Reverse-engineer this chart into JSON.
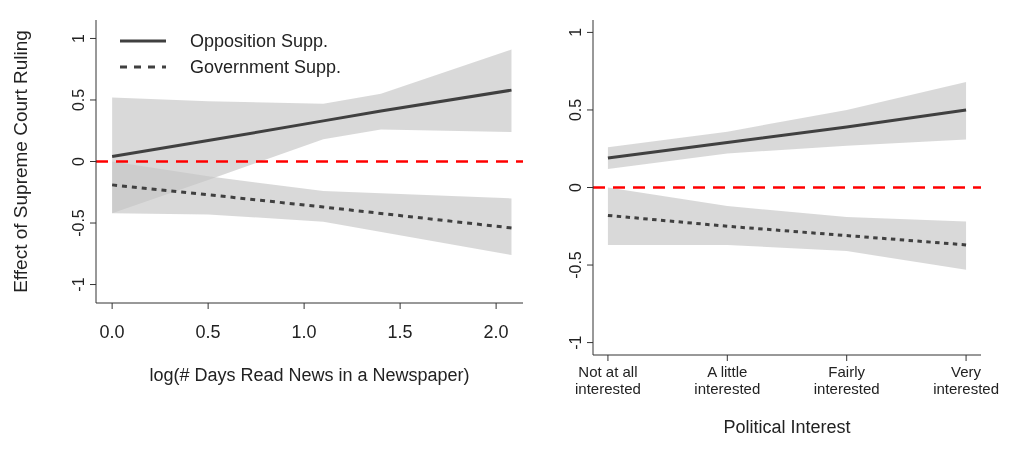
{
  "chart_data": [
    {
      "type": "line",
      "xlabel": "log(# Days Read News in a Newspaper)",
      "ylabel": "Effect of Supreme Court Ruling",
      "xlim": [
        -0.084,
        2.14
      ],
      "xticks": [
        {
          "value": 0,
          "label": "0.0"
        },
        0.5,
        {
          "value": 1,
          "label": "1.0"
        },
        1.5,
        {
          "value": 2,
          "label": "2.0"
        }
      ],
      "ylim": [
        -1.15,
        1.15
      ],
      "yticks": [
        -1,
        -0.5,
        0,
        0.5,
        1
      ],
      "grid": false,
      "legend": "top left",
      "marker": "none",
      "series": [
        {
          "name": "Opposition Supp.",
          "color": "#404040",
          "line_style": "solid",
          "x": [
            0,
            0.5,
            1.1,
            1.4,
            2.08
          ],
          "values": [
            0.04,
            0.17,
            0.33,
            0.41,
            0.58
          ],
          "lower": [
            -0.42,
            -0.15,
            0.18,
            0.26,
            0.24
          ],
          "upper": [
            0.52,
            0.49,
            0.47,
            0.55,
            0.91
          ]
        },
        {
          "name": "Government Supp.",
          "color": "#404040",
          "line_style": "dashed",
          "x": [
            0,
            0.5,
            1.1,
            2.08
          ],
          "values": [
            -0.19,
            -0.27,
            -0.37,
            -0.54
          ],
          "lower": [
            -0.42,
            -0.43,
            -0.49,
            -0.76
          ],
          "upper": [
            0.0,
            -0.12,
            -0.24,
            -0.3
          ]
        }
      ],
      "ref_lines": [
        {
          "axis": "y",
          "value": 0,
          "color": "#ff0000",
          "line_style": "dashed"
        }
      ]
    },
    {
      "type": "line",
      "xlabel": "Political Interest",
      "categories": [
        "Not at all\ninterested",
        "A little\ninterested",
        "Fairly\ninterested",
        "Very\ninterested"
      ],
      "ylim": [
        -1.08,
        1.08
      ],
      "yticks": [
        -1,
        -0.5,
        0,
        0.5,
        1
      ],
      "grid": false,
      "marker": "none",
      "series": [
        {
          "color": "#404040",
          "line_style": "solid",
          "values": [
            0.19,
            0.29,
            0.39,
            0.5
          ],
          "lower": [
            0.12,
            0.22,
            0.27,
            0.31
          ],
          "upper": [
            0.26,
            0.36,
            0.5,
            0.68
          ]
        },
        {
          "color": "#404040",
          "line_style": "dashed",
          "values": [
            -0.18,
            -0.25,
            -0.31,
            -0.37
          ],
          "lower": [
            -0.37,
            -0.37,
            -0.41,
            -0.53
          ],
          "upper": [
            0.0,
            -0.12,
            -0.19,
            -0.22
          ]
        }
      ],
      "ref_lines": [
        {
          "axis": "y",
          "value": 0,
          "color": "#ff0000",
          "line_style": "dashed"
        }
      ]
    }
  ]
}
